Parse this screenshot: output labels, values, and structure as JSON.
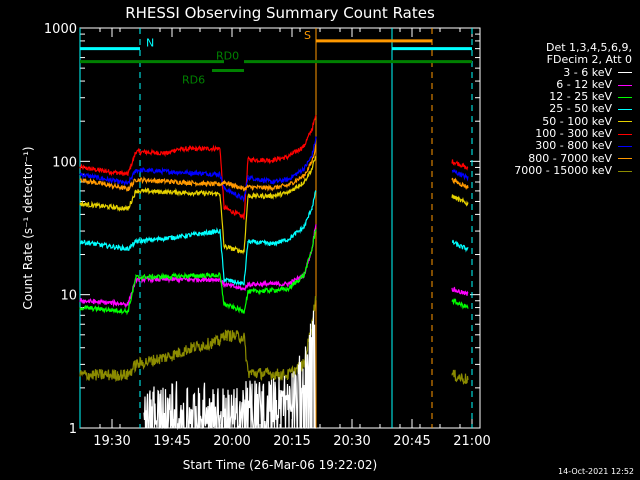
{
  "chart_data": {
    "type": "line",
    "title": "RHESSI Observing Summary Count Rates",
    "xlabel": "Start Time (26-Mar-06 19:22:02)",
    "ylabel": "Count Rate (s⁻¹ detector⁻¹)",
    "ylog": true,
    "ylim": [
      1,
      1000
    ],
    "xlim": [
      "19:22",
      "21:02"
    ],
    "yticks": [
      {
        "v": 1,
        "label": "1"
      },
      {
        "v": 10,
        "label": "10"
      },
      {
        "v": 100,
        "label": "100"
      },
      {
        "v": 1000,
        "label": "1000"
      }
    ],
    "xticks": [
      "19:30",
      "19:45",
      "20:00",
      "20:15",
      "20:30",
      "20:45",
      "21:00"
    ],
    "legend": {
      "placement": "right",
      "header": [
        "Det 1,3,4,5,6,9,",
        "FDecim 2, Att 0"
      ],
      "entries": [
        {
          "label": "3 - 6 keV",
          "color": "#ffffff"
        },
        {
          "label": "6 - 12 keV",
          "color": "#ff00ff"
        },
        {
          "label": "12 - 25 keV",
          "color": "#00ff00"
        },
        {
          "label": "25 - 50 keV",
          "color": "#00ffff"
        },
        {
          "label": "50 - 100 keV",
          "color": "#e5d100"
        },
        {
          "label": "100 - 300 keV",
          "color": "#ff0000"
        },
        {
          "label": "300 - 800 keV",
          "color": "#0000ff"
        },
        {
          "label": "800 - 7000 keV",
          "color": "#ff9900"
        },
        {
          "label": "7000 - 15000 keV",
          "color": "#8b8b00"
        }
      ]
    },
    "series": [
      {
        "color": "#ff0000",
        "points": [
          [
            "19:22",
            90
          ],
          [
            "19:34",
            80
          ],
          [
            "19:36",
            118
          ],
          [
            "19:44",
            115
          ],
          [
            "19:46",
            123
          ],
          [
            "19:57",
            125
          ],
          [
            "19:58",
            45
          ],
          [
            "20:03",
            38
          ],
          [
            "20:04",
            103
          ],
          [
            "20:10",
            102
          ],
          [
            "20:14",
            108
          ],
          [
            "20:18",
            130
          ],
          [
            "20:20",
            175
          ],
          [
            "20:21",
            220
          ],
          [
            "20:21",
            null
          ],
          [
            "20:55",
            100
          ],
          [
            "20:57",
            95
          ],
          [
            "20:59",
            88
          ]
        ]
      },
      {
        "color": "#0000ff",
        "points": [
          [
            "19:22",
            80
          ],
          [
            "19:34",
            68
          ],
          [
            "19:36",
            86
          ],
          [
            "19:57",
            80
          ],
          [
            "19:58",
            63
          ],
          [
            "20:03",
            52
          ],
          [
            "20:04",
            76
          ],
          [
            "20:10",
            70
          ],
          [
            "20:14",
            73
          ],
          [
            "20:18",
            88
          ],
          [
            "20:20",
            110
          ],
          [
            "20:21",
            150
          ],
          [
            "20:21",
            null
          ],
          [
            "20:55",
            85
          ],
          [
            "20:57",
            80
          ],
          [
            "20:59",
            75
          ]
        ]
      },
      {
        "color": "#ff9900",
        "points": [
          [
            "19:22",
            73
          ],
          [
            "19:34",
            62
          ],
          [
            "19:36",
            73
          ],
          [
            "19:57",
            67
          ],
          [
            "19:58",
            70
          ],
          [
            "20:03",
            62
          ],
          [
            "20:04",
            64
          ],
          [
            "20:10",
            63
          ],
          [
            "20:14",
            66
          ],
          [
            "20:18",
            78
          ],
          [
            "20:20",
            100
          ],
          [
            "20:21",
            130
          ],
          [
            "20:21",
            null
          ],
          [
            "20:55",
            73
          ],
          [
            "20:57",
            68
          ],
          [
            "20:59",
            64
          ]
        ]
      },
      {
        "color": "#e5d100",
        "points": [
          [
            "19:22",
            48
          ],
          [
            "19:34",
            44
          ],
          [
            "19:36",
            60
          ],
          [
            "19:57",
            57
          ],
          [
            "19:58",
            23
          ],
          [
            "20:03",
            21
          ],
          [
            "20:04",
            55
          ],
          [
            "20:10",
            55
          ],
          [
            "20:14",
            58
          ],
          [
            "20:18",
            70
          ],
          [
            "20:20",
            88
          ],
          [
            "20:21",
            110
          ],
          [
            "20:21",
            null
          ],
          [
            "20:55",
            55
          ],
          [
            "20:57",
            51
          ],
          [
            "20:59",
            48
          ]
        ]
      },
      {
        "color": "#00ffff",
        "points": [
          [
            "19:22",
            25
          ],
          [
            "19:34",
            22
          ],
          [
            "19:36",
            25
          ],
          [
            "19:46",
            27
          ],
          [
            "19:57",
            30
          ],
          [
            "19:58",
            13
          ],
          [
            "20:03",
            12
          ],
          [
            "20:04",
            25
          ],
          [
            "20:10",
            24
          ],
          [
            "20:14",
            26
          ],
          [
            "20:18",
            32
          ],
          [
            "20:20",
            45
          ],
          [
            "20:21",
            60
          ],
          [
            "20:21",
            null
          ],
          [
            "20:55",
            25
          ],
          [
            "20:57",
            23
          ],
          [
            "20:59",
            22
          ]
        ]
      },
      {
        "color": "#ff00ff",
        "points": [
          [
            "19:22",
            9
          ],
          [
            "19:34",
            8.5
          ],
          [
            "19:36",
            13
          ],
          [
            "19:57",
            13
          ],
          [
            "19:58",
            12
          ],
          [
            "20:03",
            11
          ],
          [
            "20:04",
            12
          ],
          [
            "20:14",
            12
          ],
          [
            "20:18",
            14
          ],
          [
            "20:20",
            22
          ],
          [
            "20:21",
            35
          ],
          [
            "20:21",
            null
          ],
          [
            "20:55",
            11
          ],
          [
            "20:59",
            10
          ]
        ]
      },
      {
        "color": "#00ff00",
        "points": [
          [
            "19:22",
            8
          ],
          [
            "19:34",
            7.5
          ],
          [
            "19:36",
            13.5
          ],
          [
            "19:57",
            14
          ],
          [
            "19:58",
            8.5
          ],
          [
            "20:03",
            7.5
          ],
          [
            "20:04",
            10.5
          ],
          [
            "20:14",
            11
          ],
          [
            "20:18",
            14
          ],
          [
            "20:20",
            22
          ],
          [
            "20:21",
            32
          ],
          [
            "20:21",
            null
          ],
          [
            "20:55",
            9
          ],
          [
            "20:59",
            8
          ]
        ]
      },
      {
        "color": "#8b8b00",
        "points": [
          [
            "19:22",
            2.5
          ],
          [
            "19:34",
            2.5
          ],
          [
            "19:36",
            3
          ],
          [
            "19:40",
            3.2
          ],
          [
            "19:45",
            3.5
          ],
          [
            "19:50",
            4
          ],
          [
            "19:57",
            4.5
          ],
          [
            "19:58",
            5
          ],
          [
            "20:03",
            4.8
          ],
          [
            "20:04",
            2.6
          ],
          [
            "20:14",
            2.5
          ],
          [
            "20:18",
            3
          ],
          [
            "20:20",
            6
          ],
          [
            "20:21",
            10
          ],
          [
            "20:21",
            null
          ],
          [
            "20:55",
            2.5
          ],
          [
            "20:59",
            2.3
          ]
        ]
      },
      {
        "color": "#ffffff",
        "points": [
          [
            "19:38",
            1.3
          ],
          [
            "19:45",
            1.5
          ],
          [
            "19:55",
            1.5
          ],
          [
            "20:00",
            1.3
          ],
          [
            "20:05",
            1.6
          ],
          [
            "20:10",
            1.6
          ],
          [
            "20:15",
            1.9
          ],
          [
            "20:19",
            3
          ],
          [
            "20:20",
            5
          ],
          [
            "20:21",
            8
          ]
        ]
      }
    ],
    "annotations": {
      "night_N": {
        "label": "N",
        "color": "#00ffff",
        "bars": [
          [
            "19:22",
            "19:37"
          ],
          [
            "20:40",
            "21:00"
          ]
        ],
        "y": 700,
        "lines": [
          "19:22",
          "19:37",
          "20:40",
          "21:00"
        ]
      },
      "saa_S": {
        "label": "S",
        "color": "#ff9900",
        "bars": [
          [
            "20:21",
            "20:50"
          ]
        ],
        "y": 800,
        "lines": [
          "20:21",
          "20:50"
        ]
      },
      "rd0": {
        "label": "RD0",
        "color": "#008000",
        "bars": [
          [
            "19:22",
            "19:58"
          ],
          [
            "20:03",
            "21:00"
          ]
        ],
        "y": 560
      },
      "rd6": {
        "label": "RD6",
        "color": "#008000",
        "bars": [
          [
            "19:55",
            "20:03"
          ]
        ],
        "y": 480
      }
    }
  },
  "footer": {
    "timestamp": "14-Oct-2021 12:52"
  }
}
